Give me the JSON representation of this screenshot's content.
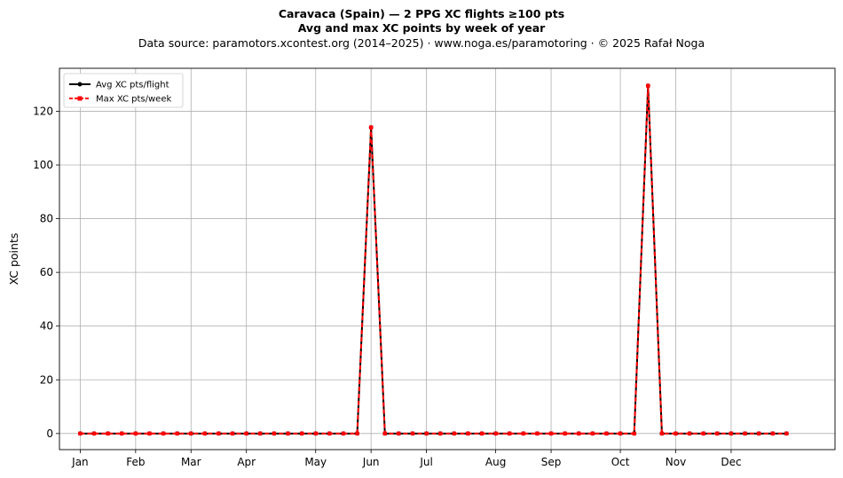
{
  "chart_data": {
    "type": "line",
    "title": "Caravaca (Spain)  —  2 PPG XC flights ≥100 pts",
    "subtitle": "Avg and max XC points by week of year",
    "source_line": "Data source: paramotors.xcontest.org (2014–2025)  ·  www.noga.es/paramotoring  ·  © 2025 Rafał Noga",
    "ylabel": "XC points",
    "ylim": [
      -6,
      136
    ],
    "yticks": [
      0,
      20,
      40,
      60,
      80,
      100,
      120
    ],
    "xlim": [
      -1.5,
      54.5
    ],
    "x_ticks": [
      {
        "label": "Jan",
        "week": 0
      },
      {
        "label": "Feb",
        "week": 4
      },
      {
        "label": "Mar",
        "week": 8
      },
      {
        "label": "Apr",
        "week": 12
      },
      {
        "label": "May",
        "week": 17
      },
      {
        "label": "Jun",
        "week": 21
      },
      {
        "label": "Jul",
        "week": 25
      },
      {
        "label": "Aug",
        "week": 30
      },
      {
        "label": "Sep",
        "week": 34
      },
      {
        "label": "Oct",
        "week": 39
      },
      {
        "label": "Nov",
        "week": 43
      },
      {
        "label": "Dec",
        "week": 47
      }
    ],
    "grid": true,
    "legend": "top-left",
    "x": [
      0,
      1,
      2,
      3,
      4,
      5,
      6,
      7,
      8,
      9,
      10,
      11,
      12,
      13,
      14,
      15,
      16,
      17,
      18,
      19,
      20,
      21,
      22,
      23,
      24,
      25,
      26,
      27,
      28,
      29,
      30,
      31,
      32,
      33,
      34,
      35,
      36,
      37,
      38,
      39,
      40,
      41,
      42,
      43,
      44,
      45,
      46,
      47,
      48,
      49,
      50,
      51
    ],
    "series": [
      {
        "name": "Avg XC pts/flight",
        "color": "#000000",
        "style": "solid-dot",
        "values": [
          0,
          0,
          0,
          0,
          0,
          0,
          0,
          0,
          0,
          0,
          0,
          0,
          0,
          0,
          0,
          0,
          0,
          0,
          0,
          0,
          0,
          114,
          0,
          0,
          0,
          0,
          0,
          0,
          0,
          0,
          0,
          0,
          0,
          0,
          0,
          0,
          0,
          0,
          0,
          0,
          0,
          129.5,
          0,
          0,
          0,
          0,
          0,
          0,
          0,
          0,
          0,
          0
        ]
      },
      {
        "name": "Max XC pts/week",
        "color": "#ff0000",
        "style": "dashed-square",
        "values": [
          0,
          0,
          0,
          0,
          0,
          0,
          0,
          0,
          0,
          0,
          0,
          0,
          0,
          0,
          0,
          0,
          0,
          0,
          0,
          0,
          0,
          114,
          0,
          0,
          0,
          0,
          0,
          0,
          0,
          0,
          0,
          0,
          0,
          0,
          0,
          0,
          0,
          0,
          0,
          0,
          0,
          129.5,
          0,
          0,
          0,
          0,
          0,
          0,
          0,
          0,
          0,
          0
        ]
      }
    ]
  }
}
